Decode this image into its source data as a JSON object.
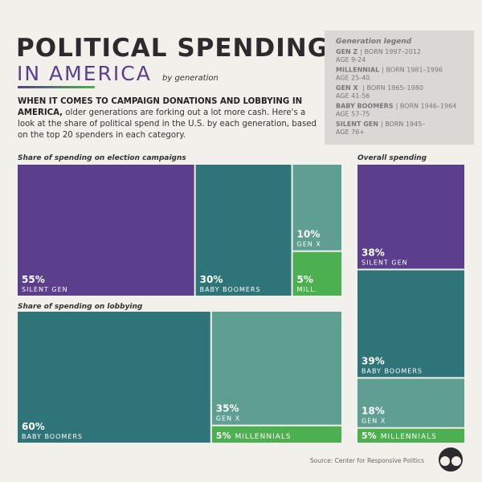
{
  "header": {
    "title": "POLITICAL SPENDING",
    "subtitle": "IN AMERICA",
    "subtitle_note": "by generation",
    "intro_bold": "WHEN IT COMES TO CAMPAIGN DONATIONS AND LOBBYING IN AMERICA,",
    "intro": " older generations are forking out a lot more cash. Here's a look at the share of political spend in the U.S. by each generation, based on the top 20 spenders in each category."
  },
  "legend": {
    "title": "Generation legend",
    "entries": [
      {
        "name": "GEN Z",
        "born": "| BORN 1997–2012",
        "age": "AGE 9-24"
      },
      {
        "name": "MILLENNIAL",
        "born": "| BORN 1981–1996",
        "age": "AGE 25-40"
      },
      {
        "name": "GEN X",
        "born": " | BORN 1965–1980",
        "age": "AGE 41-56"
      },
      {
        "name": "BABY BOOMERS",
        "born": "| BORN 1946–1964",
        "age": "AGE 57-75"
      },
      {
        "name": "SILENT GEN",
        "born": "| BORN 1945–",
        "age": "AGE 76+"
      }
    ]
  },
  "chart_data": [
    {
      "type": "treemap",
      "title": "Share of spending on election campaigns",
      "categories": [
        "SILENT GEN",
        "BABY BOOMERS",
        "GEN X",
        "MILL."
      ],
      "values": [
        55,
        30,
        10,
        5
      ],
      "value_labels": [
        "55%",
        "30%",
        "10%",
        "5%"
      ],
      "colors": [
        "#5b3f8c",
        "#2f7479",
        "#5f9f92",
        "#4caf50"
      ]
    },
    {
      "type": "treemap",
      "title": "Share of spending on lobbying",
      "categories": [
        "BABY BOOMERS",
        "GEN X",
        "MILLENNIALS"
      ],
      "values": [
        60,
        35,
        5
      ],
      "value_labels": [
        "60%",
        "35%",
        "5%"
      ],
      "colors": [
        "#2f7479",
        "#5f9f92",
        "#4caf50"
      ]
    },
    {
      "type": "treemap",
      "title": "Overall spending",
      "categories": [
        "SILENT GEN",
        "BABY BOOMERS",
        "GEN X",
        "MILLENNIALS"
      ],
      "values": [
        38,
        39,
        18,
        5
      ],
      "value_labels": [
        "38%",
        "39%",
        "18%",
        "5%"
      ],
      "colors": [
        "#5b3f8c",
        "#2f7479",
        "#5f9f92",
        "#4caf50"
      ]
    }
  ],
  "source": "Source: Center for Responsive Politics"
}
